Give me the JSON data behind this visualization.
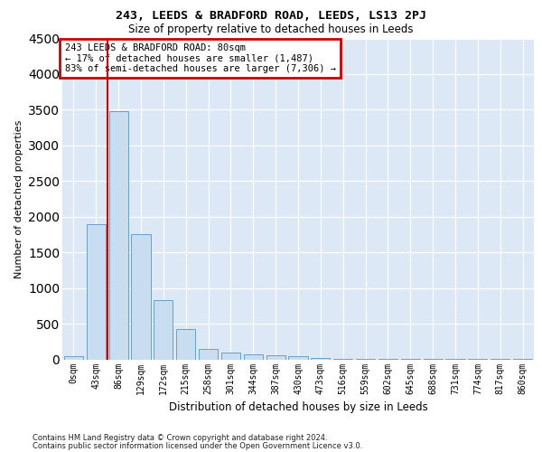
{
  "title_line1": "243, LEEDS & BRADFORD ROAD, LEEDS, LS13 2PJ",
  "title_line2": "Size of property relative to detached houses in Leeds",
  "xlabel": "Distribution of detached houses by size in Leeds",
  "ylabel": "Number of detached properties",
  "categories": [
    "0sqm",
    "43sqm",
    "86sqm",
    "129sqm",
    "172sqm",
    "215sqm",
    "258sqm",
    "301sqm",
    "344sqm",
    "387sqm",
    "430sqm",
    "473sqm",
    "516sqm",
    "559sqm",
    "602sqm",
    "645sqm",
    "688sqm",
    "731sqm",
    "774sqm",
    "817sqm",
    "860sqm"
  ],
  "values": [
    50,
    1900,
    3480,
    1750,
    830,
    430,
    150,
    100,
    75,
    60,
    40,
    15,
    8,
    5,
    3,
    2,
    1,
    1,
    1,
    1,
    1
  ],
  "bar_color": "#c9ddf0",
  "bar_edge_color": "#6a9fc8",
  "vline_position": 1.5,
  "annotation_text": "243 LEEDS & BRADFORD ROAD: 80sqm\n← 17% of detached houses are smaller (1,487)\n83% of semi-detached houses are larger (7,306) →",
  "annotation_box_facecolor": "#ffffff",
  "annotation_box_edgecolor": "#cc0000",
  "ylim_max": 4500,
  "yticks": [
    0,
    500,
    1000,
    1500,
    2000,
    2500,
    3000,
    3500,
    4000,
    4500
  ],
  "plot_bg": "#dce8f5",
  "grid_color": "#ffffff",
  "footer_line1": "Contains HM Land Registry data © Crown copyright and database right 2024.",
  "footer_line2": "Contains public sector information licensed under the Open Government Licence v3.0."
}
